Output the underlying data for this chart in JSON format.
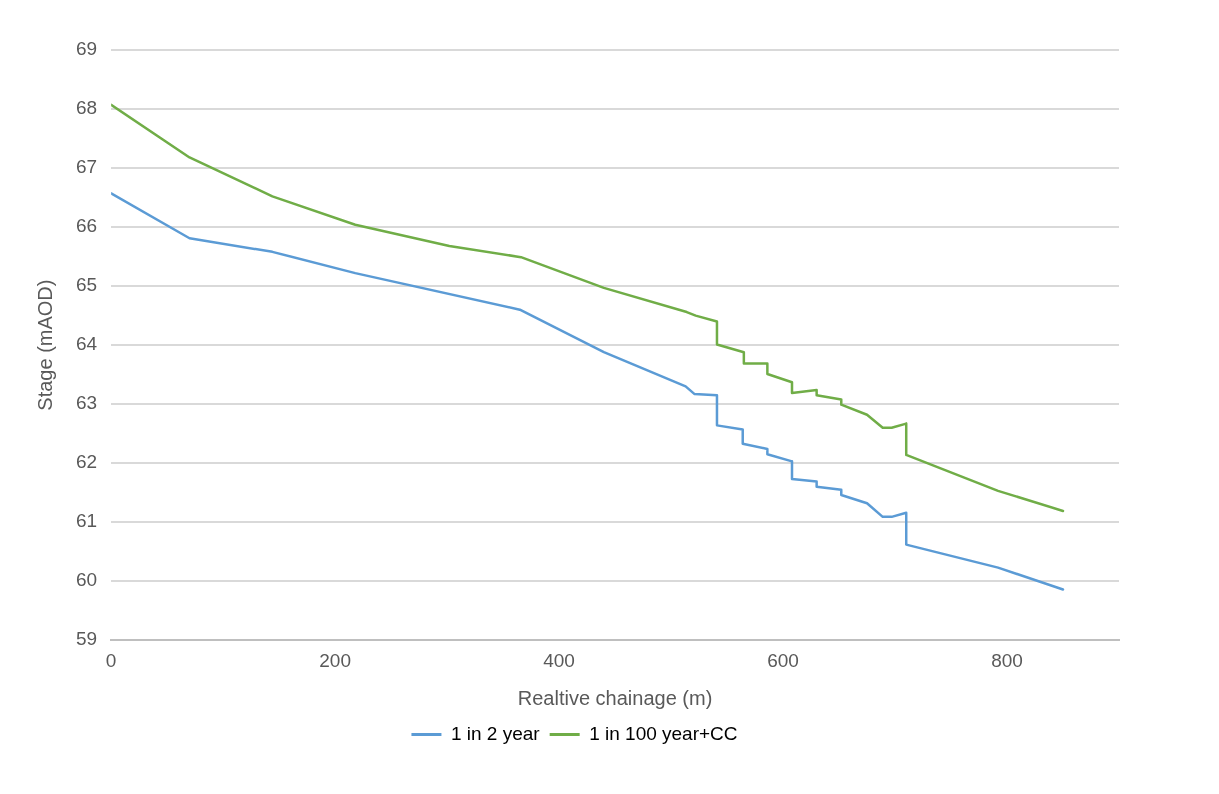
{
  "chart_data": {
    "type": "line",
    "xlabel": "Realtive chainage (m)",
    "ylabel": "Stage (mAOD)",
    "xlim": [
      0,
      900
    ],
    "xticks": [
      0,
      200,
      400,
      600,
      800
    ],
    "ylim": [
      59,
      69
    ],
    "yticks": [
      59,
      60,
      61,
      62,
      63,
      64,
      65,
      66,
      67,
      68,
      69
    ],
    "grid": "y",
    "legend": "bottom",
    "marker": "none",
    "line_style": "solid",
    "series": [
      {
        "name": "1 in 2 year",
        "color": "#5b9bd5",
        "x": [
          0,
          70,
          144,
          218,
          365,
          440,
          513,
          521,
          541,
          541,
          564,
          564,
          586,
          586,
          608,
          608,
          630,
          630,
          652,
          652,
          675,
          689,
          697,
          710,
          710,
          792,
          850
        ],
        "values": [
          66.57,
          65.81,
          65.58,
          65.22,
          64.6,
          63.88,
          63.3,
          63.17,
          63.15,
          62.64,
          62.57,
          62.33,
          62.24,
          62.15,
          62.03,
          61.73,
          61.69,
          61.6,
          61.55,
          61.46,
          61.32,
          61.09,
          61.09,
          61.16,
          60.62,
          60.23,
          59.86
        ]
      },
      {
        "name": "1 in 100 year+CC",
        "color": "#70ad47",
        "x": [
          0,
          70,
          144,
          218,
          302,
          366,
          440,
          514,
          522,
          541,
          541,
          565,
          565,
          586,
          586,
          608,
          608,
          630,
          630,
          652,
          652,
          675,
          689,
          697,
          710,
          710,
          792,
          850
        ],
        "values": [
          68.07,
          67.18,
          66.52,
          66.04,
          65.68,
          65.49,
          64.97,
          64.56,
          64.5,
          64.4,
          64.01,
          63.88,
          63.69,
          63.69,
          63.51,
          63.37,
          63.19,
          63.24,
          63.15,
          63.08,
          62.99,
          62.82,
          62.6,
          62.6,
          62.67,
          62.14,
          61.53,
          61.19
        ]
      }
    ]
  }
}
